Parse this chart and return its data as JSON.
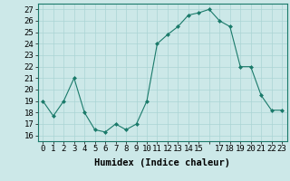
{
  "x": [
    0,
    1,
    2,
    3,
    4,
    5,
    6,
    7,
    8,
    9,
    10,
    11,
    12,
    13,
    14,
    15,
    16,
    17,
    18,
    19,
    20,
    21,
    22,
    23
  ],
  "y": [
    19,
    17.7,
    19,
    21,
    18,
    16.5,
    16.3,
    17,
    16.5,
    17,
    19,
    24,
    24.8,
    25.5,
    26.5,
    26.7,
    27,
    26,
    25.5,
    22,
    22,
    19.5,
    18.2,
    18.2
  ],
  "line_color": "#1a7a6a",
  "marker_color": "#1a7a6a",
  "bg_color": "#cce8e8",
  "grid_color": "#aad4d4",
  "xlabel": "Humidex (Indice chaleur)",
  "ylim": [
    15.5,
    27.5
  ],
  "yticks": [
    16,
    17,
    18,
    19,
    20,
    21,
    22,
    23,
    24,
    25,
    26,
    27
  ],
  "xlim": [
    -0.5,
    23.5
  ],
  "xticks": [
    0,
    1,
    2,
    3,
    4,
    5,
    6,
    7,
    8,
    9,
    10,
    11,
    12,
    13,
    14,
    15,
    16,
    17,
    18,
    19,
    20,
    21,
    22,
    23
  ],
  "xtick_labels": [
    "0",
    "1",
    "2",
    "3",
    "4",
    "5",
    "6",
    "7",
    "8",
    "9",
    "10",
    "11",
    "12",
    "13",
    "14",
    "15",
    "",
    "17",
    "18",
    "19",
    "20",
    "21",
    "22",
    "23"
  ],
  "font_size": 6.5,
  "label_font_size": 7.5
}
